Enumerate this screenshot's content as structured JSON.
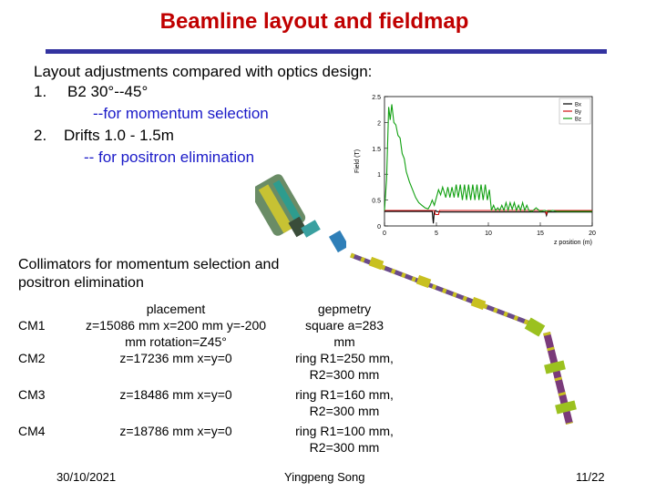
{
  "title": "Beamline layout and fieldmap",
  "intro": "Layout adjustments compared with optics design:",
  "items": [
    {
      "num": "1.",
      "text": "B2 30°--45°",
      "sub": "--for momentum selection"
    },
    {
      "num": "2.",
      "text": "Drifts 1.0 - 1.5m",
      "sub": "-- for positron elimination"
    }
  ],
  "collimators_title": [
    "Collimators for momentum selection and",
    "positron elimination"
  ],
  "table": {
    "headers": [
      "placement",
      "gepmetry"
    ],
    "rows": [
      {
        "name": "CM1",
        "placement": [
          "z=15086 mm x=200 mm y=-200",
          "mm rotation=Z45°"
        ],
        "geometry": [
          "square a=283",
          "mm"
        ]
      },
      {
        "name": "CM2",
        "placement": [
          "z=17236 mm x=y=0"
        ],
        "geometry": [
          "ring R1=250 mm,",
          "R2=300 mm"
        ]
      },
      {
        "name": "CM3",
        "placement": [
          "z=18486 mm x=y=0"
        ],
        "geometry": [
          "ring R1=160 mm,",
          "R2=300 mm"
        ]
      },
      {
        "name": "CM4",
        "placement": [
          "z=18786 mm x=y=0"
        ],
        "geometry": [
          "ring R1=100 mm,",
          "R2=300 mm"
        ]
      }
    ]
  },
  "footer": {
    "date": "30/10/2021",
    "author": "Yingpeng Song",
    "page": "11/22"
  },
  "colors": {
    "title": "#c00000",
    "rule": "#3333a0",
    "blue_text": "#1a1ac8",
    "bx": "#000000",
    "by": "#d01010",
    "bz": "#10a010"
  },
  "chart_data": {
    "type": "line",
    "xlabel": "z position (m)",
    "ylabel": "Field (T)",
    "xlim": [
      0,
      20
    ],
    "ylim": [
      0,
      2.5
    ],
    "xticks": [
      "0",
      "5",
      "10",
      "15",
      "20"
    ],
    "yticks": [
      "0",
      "0.5",
      "1",
      "1.5",
      "2",
      "2.5"
    ],
    "legend": [
      "Bx",
      "By",
      "Bz"
    ],
    "legend_position": "top-right",
    "series": [
      {
        "name": "Bx",
        "x": [
          0,
          4.6,
          4.7,
          4.8,
          4.95,
          5.0,
          5.4,
          6,
          10,
          14,
          15.5,
          15.6,
          15.7,
          17,
          20
        ],
        "y": [
          0.28,
          0.28,
          0.05,
          0.28,
          0.3,
          0.28,
          0.27,
          0.27,
          0.27,
          0.27,
          0.27,
          0.2,
          0.27,
          0.27,
          0.27
        ]
      },
      {
        "name": "By",
        "x": [
          0,
          4.8,
          4.9,
          5.2,
          5.3,
          6,
          10,
          15,
          15.5,
          15.6,
          15.7,
          17,
          20
        ],
        "y": [
          0.3,
          0.3,
          0.22,
          0.22,
          0.3,
          0.3,
          0.3,
          0.3,
          0.3,
          0.22,
          0.3,
          0.3,
          0.3
        ]
      },
      {
        "name": "Bz",
        "x": [
          0,
          0.2,
          0.4,
          0.55,
          0.7,
          0.9,
          1.1,
          1.3,
          1.5,
          1.7,
          1.9,
          2.1,
          2.4,
          2.7,
          3.0,
          3.3,
          3.6,
          3.9,
          4.2,
          4.4,
          4.6,
          4.8,
          5.0,
          5.2,
          5.4,
          5.6,
          5.9,
          6.1,
          6.3,
          6.5,
          6.7,
          6.9,
          7.1,
          7.3,
          7.5,
          7.7,
          7.9,
          8.1,
          8.3,
          8.5,
          8.7,
          8.9,
          9.1,
          9.3,
          9.5,
          9.7,
          9.9,
          10.1,
          10.3,
          10.5,
          10.7,
          10.9,
          11.1,
          11.3,
          11.5,
          11.7,
          11.9,
          12.1,
          12.3,
          12.5,
          12.7,
          12.9,
          13.1,
          13.3,
          13.5,
          13.7,
          13.9,
          14.2,
          14.6,
          15.0,
          15.4,
          15.8,
          16.2,
          16.6,
          17.0,
          17.4,
          17.8,
          18.2,
          18.6,
          19.0,
          19.4,
          19.8,
          20
        ],
        "y": [
          0.3,
          0.9,
          2.3,
          2.05,
          2.35,
          2.0,
          1.95,
          1.75,
          1.7,
          1.4,
          1.3,
          1.05,
          0.85,
          0.7,
          0.55,
          0.45,
          0.4,
          0.35,
          0.33,
          0.4,
          0.5,
          0.4,
          0.55,
          0.7,
          0.6,
          0.75,
          0.55,
          0.75,
          0.55,
          0.75,
          0.55,
          0.8,
          0.55,
          0.8,
          0.5,
          0.8,
          0.5,
          0.8,
          0.5,
          0.8,
          0.5,
          0.8,
          0.5,
          0.8,
          0.5,
          0.8,
          0.5,
          0.7,
          0.3,
          0.4,
          0.3,
          0.35,
          0.3,
          0.4,
          0.3,
          0.45,
          0.3,
          0.45,
          0.32,
          0.45,
          0.3,
          0.4,
          0.3,
          0.45,
          0.3,
          0.4,
          0.3,
          0.28,
          0.35,
          0.28,
          0.3,
          0.28,
          0.3,
          0.28,
          0.28,
          0.28,
          0.28,
          0.28,
          0.28,
          0.28,
          0.28,
          0.28,
          0.28
        ]
      }
    ]
  }
}
